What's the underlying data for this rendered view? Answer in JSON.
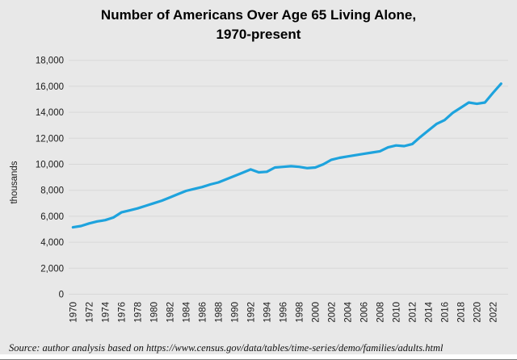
{
  "title": {
    "line1": "Number of Americans Over Age 65 Living Alone,",
    "line2": "1970-present"
  },
  "y_axis_title": "thousands",
  "source_note": "Source: author analysis based on https://www.census.gov/data/tables/time-series/demo/families/adults.html",
  "colors": {
    "background": "#e8e8e8",
    "line": "#1ea3dd",
    "gridline": "#d7d7d7",
    "tick_text": "#1a1a1a",
    "title_text": "#000000"
  },
  "chart_data": {
    "type": "line",
    "title": "Number of Americans Over Age 65 Living Alone, 1970-present",
    "xlabel": "",
    "ylabel": "thousands",
    "legend": false,
    "grid": true,
    "ylim": [
      0,
      18000
    ],
    "ytick_step": 2000,
    "ytick_values": [
      0,
      2000,
      4000,
      6000,
      8000,
      10000,
      12000,
      14000,
      16000,
      18000
    ],
    "xtick_labels": [
      "1970",
      "1972",
      "1974",
      "1976",
      "1978",
      "1980",
      "1982",
      "1984",
      "1986",
      "1988",
      "1990",
      "1992",
      "1994",
      "1996",
      "1998",
      "2000",
      "2002",
      "2004",
      "2006",
      "2008",
      "2010",
      "2012",
      "2014",
      "2016",
      "2018",
      "2020",
      "2022"
    ],
    "x": [
      1970,
      1971,
      1972,
      1973,
      1974,
      1975,
      1976,
      1977,
      1978,
      1979,
      1980,
      1981,
      1982,
      1983,
      1984,
      1985,
      1986,
      1987,
      1988,
      1989,
      1990,
      1991,
      1992,
      1993,
      1994,
      1995,
      1996,
      1997,
      1998,
      1999,
      2000,
      2001,
      2002,
      2003,
      2004,
      2005,
      2006,
      2007,
      2008,
      2009,
      2010,
      2011,
      2012,
      2013,
      2014,
      2015,
      2016,
      2017,
      2018,
      2019,
      2020,
      2021,
      2022,
      2023
    ],
    "values": [
      5150,
      5250,
      5450,
      5600,
      5700,
      5900,
      6300,
      6450,
      6600,
      6800,
      7000,
      7200,
      7450,
      7700,
      7950,
      8100,
      8250,
      8450,
      8600,
      8850,
      9100,
      9350,
      9600,
      9380,
      9420,
      9750,
      9800,
      9850,
      9800,
      9700,
      9750,
      10000,
      10350,
      10500,
      10600,
      10700,
      10800,
      10900,
      11000,
      11300,
      11450,
      11400,
      11550,
      12100,
      12600,
      13100,
      13400,
      13950,
      14350,
      14750,
      14650,
      14750,
      15500,
      16200
    ]
  }
}
